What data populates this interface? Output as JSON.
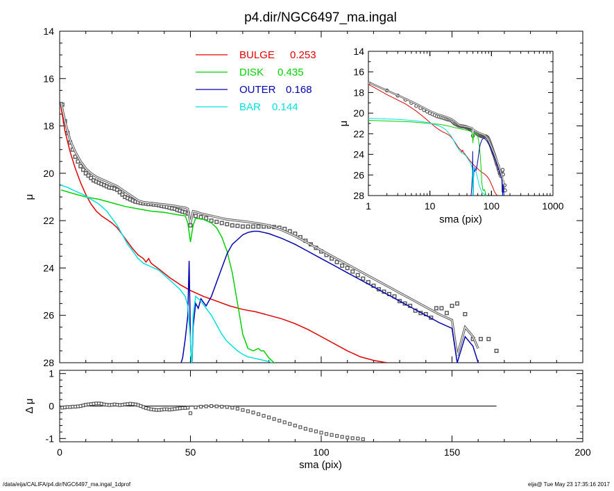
{
  "chart_data": [
    {
      "id": "main",
      "type": "line",
      "title": "p4.dir/NGC6497_ma.ingal",
      "ylabel": "μ",
      "xlim": [
        0,
        200
      ],
      "ylim": [
        28,
        14
      ],
      "y_inverted": true,
      "x_ticks": [
        "0",
        "50",
        "100",
        "150",
        "200"
      ],
      "y_ticks": [
        "14",
        "16",
        "18",
        "20",
        "22",
        "24",
        "26",
        "28"
      ],
      "legend": {
        "position": "top-center",
        "entries": [
          {
            "name": "BULGE",
            "value": "0.253",
            "color": "#e00000"
          },
          {
            "name": "DISK",
            "value": "0.435",
            "color": "#00d000"
          },
          {
            "name": "OUTER",
            "value": "0.168",
            "color": "#0000b0"
          },
          {
            "name": "BAR",
            "value": "0.144",
            "color": "#00e0e0"
          }
        ]
      },
      "series": [
        {
          "name": "data",
          "kind": "points",
          "color": "#555555",
          "x": [
            1,
            2,
            3,
            4,
            5,
            6,
            7,
            8,
            9,
            10,
            11,
            12,
            13,
            14,
            15,
            16,
            17,
            18,
            19,
            20,
            21,
            22,
            23,
            24,
            25,
            26,
            27,
            28,
            29,
            30,
            31,
            32,
            33,
            34,
            35,
            36,
            37,
            38,
            39,
            40,
            41,
            42,
            43,
            44,
            45,
            46,
            47,
            48,
            49,
            50,
            52,
            54,
            56,
            58,
            60,
            62,
            64,
            66,
            68,
            70,
            72,
            74,
            76,
            78,
            80,
            82,
            84,
            86,
            88,
            90,
            92,
            94,
            96,
            98,
            100,
            102,
            104,
            106,
            108,
            110,
            112,
            114,
            116,
            118,
            120,
            122,
            124,
            126,
            128,
            130,
            132,
            134,
            136,
            138,
            140,
            142,
            144,
            146,
            148,
            150,
            152,
            155,
            158,
            161,
            164,
            167
          ],
          "y": [
            17.1,
            17.8,
            18.3,
            18.7,
            19.0,
            19.3,
            19.5,
            19.7,
            19.85,
            20.0,
            20.1,
            20.2,
            20.3,
            20.35,
            20.4,
            20.45,
            20.5,
            20.55,
            20.6,
            20.62,
            20.65,
            20.7,
            20.8,
            20.9,
            21.0,
            21.05,
            21.1,
            21.15,
            21.2,
            21.22,
            21.25,
            21.27,
            21.28,
            21.3,
            21.3,
            21.32,
            21.33,
            21.35,
            21.38,
            21.4,
            21.42,
            21.45,
            21.48,
            21.5,
            21.55,
            21.58,
            21.62,
            21.65,
            21.7,
            22.2,
            21.8,
            21.85,
            21.9,
            22.0,
            22.05,
            22.1,
            22.15,
            22.2,
            22.22,
            22.25,
            22.25,
            22.25,
            22.25,
            22.25,
            22.25,
            22.27,
            22.3,
            22.35,
            22.45,
            22.55,
            22.7,
            22.85,
            23.0,
            23.15,
            23.3,
            23.45,
            23.6,
            23.75,
            23.9,
            24.0,
            24.15,
            24.3,
            24.45,
            24.6,
            24.75,
            24.9,
            25.0,
            25.1,
            25.2,
            25.4,
            25.5,
            25.6,
            25.8,
            25.9,
            25.95,
            26.1,
            25.7,
            25.7,
            25.9,
            25.6,
            25.5,
            25.95,
            27.0,
            27.0,
            27.0,
            27.5
          ]
        },
        {
          "name": "model",
          "kind": "line",
          "color": "#555555",
          "x": [
            0.5,
            2,
            4,
            6,
            8,
            10,
            12,
            14,
            16,
            18,
            20,
            22,
            24,
            26,
            28,
            30,
            32,
            34,
            36,
            38,
            40,
            42,
            44,
            46,
            48,
            49,
            50,
            51,
            52,
            54,
            56,
            58,
            60,
            64,
            68,
            72,
            76,
            80,
            85,
            90,
            95,
            100,
            105,
            110,
            115,
            120,
            125,
            130,
            135,
            140,
            145,
            150,
            152,
            155,
            158,
            160
          ],
          "y": [
            17.0,
            17.8,
            18.6,
            19.1,
            19.5,
            19.8,
            20.0,
            20.15,
            20.25,
            20.35,
            20.45,
            20.55,
            20.7,
            20.85,
            21.0,
            21.15,
            21.22,
            21.25,
            21.27,
            21.3,
            21.32,
            21.35,
            21.38,
            21.42,
            21.45,
            21.5,
            22.1,
            21.6,
            21.62,
            21.7,
            21.75,
            21.8,
            21.85,
            21.95,
            22.0,
            22.05,
            22.12,
            22.2,
            22.4,
            22.65,
            22.95,
            23.25,
            23.55,
            23.85,
            24.15,
            24.45,
            24.75,
            25.05,
            25.35,
            25.65,
            25.95,
            26.2,
            27.7,
            26.5,
            26.9,
            27.4
          ]
        },
        {
          "name": "BULGE",
          "kind": "line",
          "color": "#e00000",
          "x": [
            0.5,
            2,
            4,
            6,
            8,
            10,
            12,
            14,
            16,
            18,
            20,
            22,
            24,
            26,
            28,
            30,
            32,
            33,
            34,
            35,
            38,
            42,
            46,
            50,
            55,
            60,
            65,
            70,
            75,
            80,
            85,
            90,
            95,
            100,
            105,
            110,
            115,
            120,
            125
          ],
          "y": [
            17.2,
            18.2,
            19.1,
            19.8,
            20.4,
            20.9,
            21.3,
            21.6,
            21.8,
            21.95,
            22.1,
            22.3,
            22.6,
            22.9,
            23.2,
            23.45,
            23.6,
            23.75,
            23.6,
            23.8,
            24.05,
            24.4,
            24.7,
            24.95,
            25.2,
            25.4,
            25.6,
            25.75,
            25.85,
            26.0,
            26.15,
            26.35,
            26.6,
            26.9,
            27.2,
            27.5,
            27.75,
            27.9,
            28.0
          ]
        },
        {
          "name": "DISK",
          "kind": "line",
          "color": "#00d000",
          "x": [
            0.5,
            5,
            10,
            15,
            20,
            25,
            30,
            35,
            40,
            45,
            48,
            49,
            50,
            51,
            52,
            55,
            58,
            60,
            62,
            64,
            66,
            68,
            70,
            72,
            74,
            76,
            77,
            78,
            80,
            82,
            84
          ],
          "y": [
            20.7,
            20.85,
            21.0,
            21.1,
            21.25,
            21.4,
            21.5,
            21.6,
            21.65,
            21.75,
            21.8,
            22.1,
            22.9,
            22.2,
            21.9,
            21.95,
            22.1,
            22.3,
            22.7,
            23.3,
            24.2,
            25.5,
            26.8,
            27.4,
            27.5,
            27.4,
            27.5,
            27.5,
            27.8,
            28.0,
            28.2
          ]
        },
        {
          "name": "OUTER",
          "kind": "line",
          "color": "#0000b0",
          "x": [
            45,
            47,
            48,
            49,
            49.5,
            50,
            50.5,
            51,
            52,
            53,
            54,
            56,
            58,
            60,
            62,
            64,
            66,
            68,
            70,
            72,
            74,
            76,
            78,
            80,
            85,
            90,
            95,
            100,
            105,
            110,
            115,
            120,
            125,
            130,
            135,
            140,
            145,
            150,
            152,
            155,
            158,
            160
          ],
          "y": [
            28.5,
            27.8,
            27.0,
            26.0,
            23.7,
            27.0,
            28.5,
            26.5,
            25.5,
            25.7,
            25.3,
            25.6,
            25.2,
            24.6,
            24.0,
            23.4,
            23.0,
            22.8,
            22.6,
            22.5,
            22.45,
            22.45,
            22.5,
            22.55,
            22.75,
            23.0,
            23.3,
            23.6,
            23.9,
            24.2,
            24.5,
            24.8,
            25.1,
            25.4,
            25.7,
            26.0,
            26.3,
            26.55,
            28.0,
            26.9,
            27.3,
            28.0
          ]
        },
        {
          "name": "BAR",
          "kind": "line",
          "color": "#00e0e0",
          "x": [
            0.5,
            3,
            6,
            9,
            12,
            15,
            18,
            20,
            22,
            24,
            26,
            28,
            30,
            32,
            34,
            36,
            38,
            40,
            42,
            44,
            46,
            48,
            49,
            50,
            50.5,
            51,
            52,
            54,
            56,
            58,
            60,
            62,
            64,
            66,
            68,
            70,
            72,
            74,
            76,
            78,
            80,
            82
          ],
          "y": [
            20.5,
            20.6,
            20.75,
            20.9,
            21.1,
            21.3,
            21.6,
            21.9,
            22.2,
            22.6,
            23.0,
            23.3,
            23.6,
            23.8,
            23.9,
            24.0,
            24.1,
            24.3,
            24.5,
            24.7,
            24.9,
            25.2,
            25.6,
            27.0,
            28.5,
            26.0,
            25.2,
            25.4,
            25.7,
            26.0,
            26.4,
            26.8,
            27.1,
            27.3,
            27.5,
            27.65,
            27.75,
            27.8,
            27.85,
            27.9,
            27.95,
            28.05
          ]
        }
      ]
    },
    {
      "id": "inset",
      "type": "line",
      "xlabel": "sma (pix)",
      "ylabel": "μ",
      "x_scale": "log",
      "xlim": [
        1,
        1000
      ],
      "ylim": [
        28,
        14
      ],
      "y_inverted": true,
      "x_ticks": [
        "1",
        "10",
        "100",
        "1000"
      ],
      "y_ticks": [
        "14",
        "16",
        "18",
        "20",
        "22",
        "24",
        "26",
        "28"
      ]
    },
    {
      "id": "residual",
      "type": "scatter",
      "xlabel": "sma (pix)",
      "ylabel": "Δ μ",
      "xlim": [
        0,
        200
      ],
      "ylim": [
        -1.1,
        1.1
      ],
      "x_ticks": [
        "0",
        "50",
        "100",
        "150",
        "200"
      ],
      "y_ticks": [
        "1",
        "0",
        "-1"
      ],
      "zero_line": {
        "x": [
          0,
          167
        ],
        "y": 0
      },
      "series": [
        {
          "name": "residual",
          "kind": "points",
          "color": "#555555",
          "x": [
            1,
            2,
            3,
            4,
            5,
            6,
            7,
            8,
            9,
            10,
            11,
            12,
            13,
            14,
            15,
            16,
            17,
            18,
            19,
            20,
            21,
            22,
            23,
            24,
            25,
            26,
            27,
            28,
            29,
            30,
            31,
            32,
            33,
            34,
            35,
            36,
            37,
            38,
            39,
            40,
            41,
            42,
            43,
            44,
            45,
            46,
            47,
            48,
            49,
            50,
            52,
            54,
            56,
            58,
            60,
            62,
            64,
            66,
            68,
            70,
            72,
            74,
            76,
            78,
            80,
            82,
            84,
            86,
            88,
            90,
            92,
            94,
            96,
            98,
            100,
            102,
            104,
            106,
            108,
            110,
            112,
            114,
            116
          ],
          "y": [
            -0.05,
            -0.04,
            -0.03,
            -0.03,
            -0.02,
            -0.02,
            -0.01,
            0.0,
            0.02,
            0.04,
            0.05,
            0.06,
            0.07,
            0.08,
            0.08,
            0.07,
            0.05,
            0.04,
            0.03,
            0.04,
            0.05,
            0.04,
            0.03,
            0.04,
            0.05,
            0.06,
            0.07,
            0.06,
            0.05,
            0.03,
            0.0,
            -0.03,
            -0.06,
            -0.08,
            -0.1,
            -0.11,
            -0.12,
            -0.12,
            -0.11,
            -0.1,
            -0.1,
            -0.11,
            -0.1,
            -0.09,
            -0.08,
            -0.07,
            -0.06,
            -0.06,
            -0.05,
            -0.22,
            -0.04,
            -0.02,
            -0.01,
            0.0,
            -0.01,
            -0.02,
            -0.03,
            -0.05,
            -0.08,
            -0.12,
            -0.16,
            -0.2,
            -0.25,
            -0.3,
            -0.35,
            -0.4,
            -0.45,
            -0.5,
            -0.55,
            -0.6,
            -0.65,
            -0.7,
            -0.74,
            -0.78,
            -0.82,
            -0.86,
            -0.89,
            -0.92,
            -0.95,
            -0.97,
            -0.99,
            -1.0,
            -1.02
          ]
        }
      ]
    }
  ],
  "footer": {
    "left": "/data/eija/CALIFA/p4.dir/NGC6497_ma.ingal_1dprof",
    "right": "eija@  Tue May 23 17:35:16 2017"
  }
}
